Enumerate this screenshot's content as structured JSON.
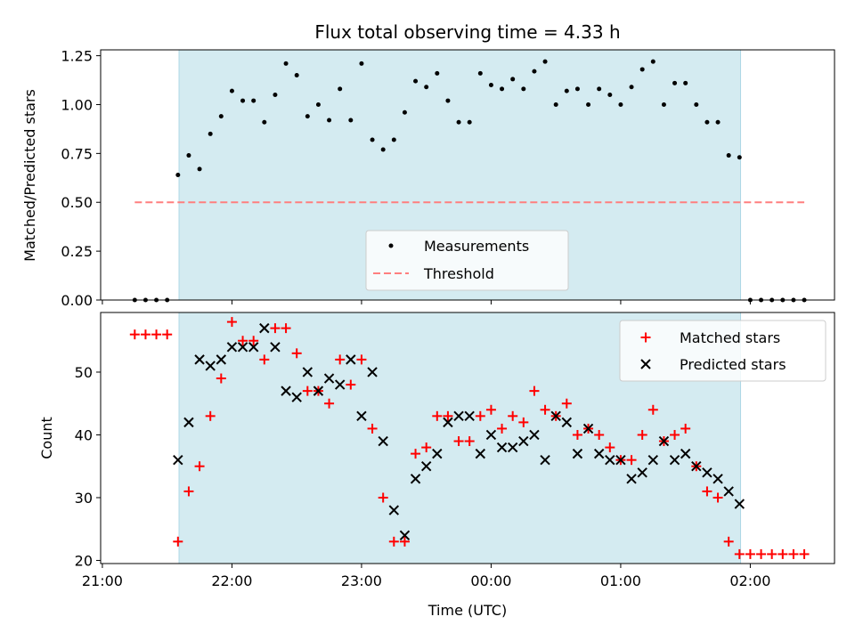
{
  "chart_data": {
    "type": "scatter",
    "title": "Flux total observing time = 4.33 h",
    "xlabel": "Time (UTC)",
    "x_ticks": [
      "21:00",
      "22:00",
      "23:00",
      "00:00",
      "01:00",
      "02:00"
    ],
    "x_tick_minutes": [
      0,
      60,
      120,
      180,
      240,
      300
    ],
    "x_range_minutes": [
      -0.8,
      339
    ],
    "observing_window_minutes": [
      35.5,
      295.5
    ],
    "observing_window_color": "#d4ebf1",
    "top_panel": {
      "ylabel": "Matched/Predicted stars",
      "ylim": [
        0,
        1.28
      ],
      "y_ticks": [
        "0.00",
        "0.25",
        "0.50",
        "0.75",
        "1.00",
        "1.25"
      ],
      "y_tick_values": [
        0,
        0.25,
        0.5,
        0.75,
        1.0,
        1.25
      ],
      "threshold": {
        "value": 0.5,
        "x_range_minutes": [
          15,
          325
        ],
        "color": "#ff7f7f"
      },
      "legend": {
        "position": "lower-center",
        "items": [
          "Measurements",
          "Threshold"
        ]
      },
      "series": [
        {
          "name": "Measurements",
          "color": "#000000",
          "x_minutes": [
            15,
            20,
            25,
            30,
            35,
            40,
            45,
            50,
            55,
            60,
            65,
            70,
            75,
            80,
            85,
            90,
            95,
            100,
            105,
            110,
            115,
            120,
            125,
            130,
            135,
            140,
            145,
            150,
            155,
            160,
            165,
            170,
            175,
            180,
            185,
            190,
            195,
            200,
            205,
            210,
            215,
            220,
            225,
            230,
            235,
            240,
            245,
            250,
            255,
            260,
            265,
            270,
            275,
            280,
            285,
            290,
            295,
            300,
            305,
            310,
            315,
            320,
            325
          ],
          "values": [
            0,
            0,
            0,
            0,
            0.64,
            0.74,
            0.67,
            0.85,
            0.94,
            1.07,
            1.02,
            1.02,
            0.91,
            1.05,
            1.21,
            1.15,
            0.94,
            1.0,
            0.92,
            1.08,
            0.92,
            1.21,
            0.82,
            0.77,
            0.82,
            0.96,
            1.12,
            1.09,
            1.16,
            1.02,
            0.91,
            0.91,
            1.16,
            1.1,
            1.08,
            1.13,
            1.08,
            1.17,
            1.22,
            1.0,
            1.07,
            1.08,
            1.0,
            1.08,
            1.05,
            1.0,
            1.09,
            1.18,
            1.22,
            1.0,
            1.11,
            1.11,
            1.0,
            0.91,
            0.91,
            0.74,
            0.73,
            0,
            0,
            0,
            0,
            0,
            0
          ]
        }
      ]
    },
    "bottom_panel": {
      "ylabel": "Count",
      "ylim": [
        19.5,
        59.5
      ],
      "y_ticks": [
        "20",
        "30",
        "40",
        "50"
      ],
      "y_tick_values": [
        20,
        30,
        40,
        50
      ],
      "legend": {
        "position": "top-right",
        "items": [
          "Matched stars",
          "Predicted stars"
        ]
      },
      "series": [
        {
          "name": "Matched stars",
          "marker": "+",
          "color": "#ff0000",
          "x_minutes": [
            15,
            20,
            25,
            30,
            35,
            40,
            45,
            50,
            55,
            60,
            65,
            70,
            75,
            80,
            85,
            90,
            95,
            100,
            105,
            110,
            115,
            120,
            125,
            130,
            135,
            140,
            145,
            150,
            155,
            160,
            165,
            170,
            175,
            180,
            185,
            190,
            195,
            200,
            205,
            210,
            215,
            220,
            225,
            230,
            235,
            240,
            245,
            250,
            255,
            260,
            265,
            270,
            275,
            280,
            285,
            290,
            295,
            300,
            305,
            310,
            315,
            320,
            325
          ],
          "values": [
            56,
            56,
            56,
            56,
            23,
            31,
            35,
            43,
            49,
            58,
            55,
            55,
            52,
            57,
            57,
            53,
            47,
            47,
            45,
            52,
            48,
            52,
            41,
            30,
            23,
            23,
            37,
            38,
            43,
            43,
            39,
            39,
            43,
            44,
            41,
            43,
            42,
            47,
            44,
            43,
            45,
            40,
            41,
            40,
            38,
            36,
            36,
            40,
            44,
            39,
            40,
            41,
            35,
            31,
            30,
            23,
            21,
            21,
            21,
            21,
            21,
            21,
            21
          ]
        },
        {
          "name": "Predicted stars",
          "marker": "x",
          "color": "#000000",
          "x_minutes": [
            35,
            40,
            45,
            50,
            55,
            60,
            65,
            70,
            75,
            80,
            85,
            90,
            95,
            100,
            105,
            110,
            115,
            120,
            125,
            130,
            135,
            140,
            145,
            150,
            155,
            160,
            165,
            170,
            175,
            180,
            185,
            190,
            195,
            200,
            205,
            210,
            215,
            220,
            225,
            230,
            235,
            240,
            245,
            250,
            255,
            260,
            265,
            270,
            275,
            280,
            285,
            290,
            295
          ],
          "values": [
            36,
            42,
            52,
            51,
            52,
            54,
            54,
            54,
            57,
            54,
            47,
            46,
            50,
            47,
            49,
            48,
            52,
            43,
            50,
            39,
            28,
            24,
            33,
            35,
            37,
            42,
            43,
            43,
            37,
            40,
            38,
            38,
            39,
            40,
            36,
            43,
            42,
            37,
            41,
            37,
            36,
            36,
            33,
            34,
            36,
            39,
            36,
            37,
            35,
            34,
            33,
            31,
            29
          ]
        }
      ]
    }
  }
}
